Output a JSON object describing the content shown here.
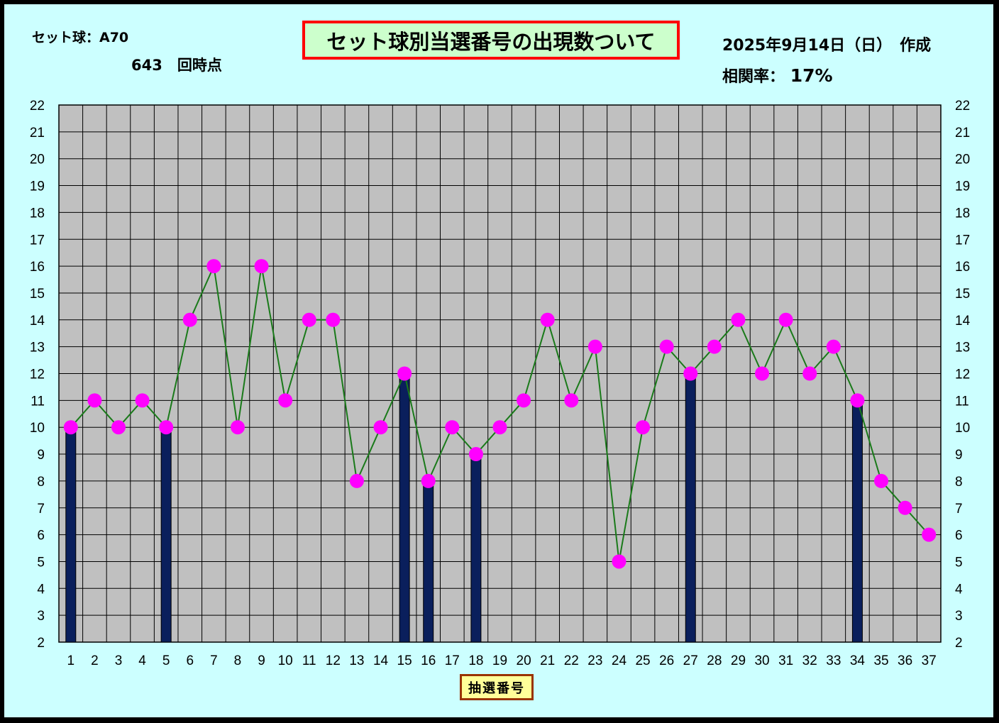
{
  "header": {
    "set_ball": "セット球：A70",
    "draw_point": "643　回時点",
    "title": "セット球別当選番号の出現数ついて",
    "date": "2025年9月14日（日）　作成",
    "corr_label": "相関率：",
    "corr_value": "17%"
  },
  "colors": {
    "background": "#ccffff",
    "plot_area": "#c0c0c0",
    "grid": "#000000",
    "bar": "#0a1f5c",
    "line": "#1a7a1a",
    "marker": "#ff00ff",
    "title_bg": "#ccffcc",
    "title_border": "#ff0000",
    "xlabel_bg": "#ffff99",
    "xlabel_border": "#993300"
  },
  "chart_data": {
    "type": "bar+line",
    "xlabel": "抽選番号",
    "categories": [
      "1",
      "2",
      "3",
      "4",
      "5",
      "6",
      "7",
      "8",
      "9",
      "10",
      "11",
      "12",
      "13",
      "14",
      "15",
      "16",
      "17",
      "18",
      "19",
      "20",
      "21",
      "22",
      "23",
      "24",
      "25",
      "26",
      "27",
      "28",
      "29",
      "30",
      "31",
      "32",
      "33",
      "34",
      "35",
      "36",
      "37"
    ],
    "series": [
      {
        "type": "line",
        "values": [
          10,
          11,
          10,
          11,
          10,
          14,
          16,
          10,
          16,
          11,
          14,
          14,
          8,
          10,
          12,
          8,
          10,
          9,
          10,
          11,
          14,
          11,
          13,
          5,
          10,
          13,
          12,
          13,
          14,
          12,
          14,
          12,
          13,
          11,
          8,
          7,
          6
        ]
      },
      {
        "type": "bar",
        "values": [
          10,
          null,
          null,
          null,
          10,
          null,
          null,
          null,
          null,
          null,
          null,
          null,
          null,
          null,
          12,
          8,
          null,
          9,
          null,
          null,
          null,
          null,
          null,
          null,
          null,
          null,
          12,
          null,
          null,
          null,
          null,
          null,
          null,
          11,
          null,
          null,
          null
        ]
      }
    ],
    "ylim": [
      2,
      22
    ],
    "yticks": [
      "2",
      "3",
      "4",
      "5",
      "6",
      "7",
      "8",
      "9",
      "10",
      "11",
      "12",
      "13",
      "14",
      "15",
      "16",
      "17",
      "18",
      "19",
      "20",
      "21",
      "22"
    ],
    "grid": true,
    "secondary_axis": "right (same scale)"
  }
}
